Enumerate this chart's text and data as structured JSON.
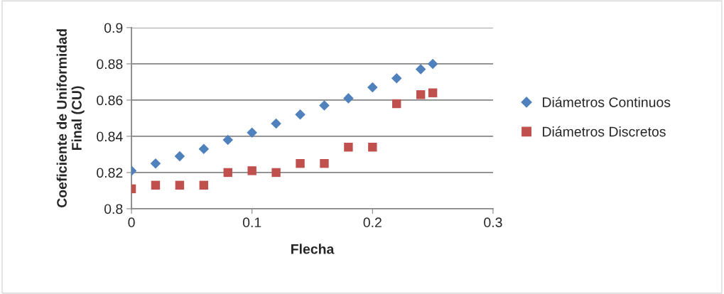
{
  "chart_data": {
    "type": "scatter",
    "xlabel": "Flecha",
    "ylabel": "Coeficiente de Uniformidad\nFinal (CU)",
    "x": [
      0,
      0.02,
      0.04,
      0.06,
      0.08,
      0.1,
      0.12,
      0.14,
      0.16,
      0.18,
      0.2,
      0.22,
      0.24,
      0.25
    ],
    "series": [
      {
        "name": "Diámetros Continuos",
        "color": "#4f81bd",
        "marker": "diamond",
        "values": [
          0.821,
          0.825,
          0.829,
          0.833,
          0.838,
          0.842,
          0.847,
          0.852,
          0.857,
          0.861,
          0.867,
          0.872,
          0.877,
          0.88
        ]
      },
      {
        "name": "Diámetros Discretos",
        "color": "#c0504d",
        "marker": "square",
        "values": [
          0.811,
          0.813,
          0.813,
          0.813,
          0.82,
          0.821,
          0.82,
          0.825,
          0.825,
          0.834,
          0.834,
          0.858,
          0.863,
          0.864
        ]
      }
    ],
    "xlim": [
      0,
      0.3
    ],
    "xticks": [
      0,
      0.1,
      0.2,
      0.3
    ],
    "ylim": [
      0.8,
      0.9
    ],
    "yticks": [
      0.8,
      0.82,
      0.84,
      0.86,
      0.88,
      0.9
    ],
    "grid": "y",
    "legend": "right"
  }
}
